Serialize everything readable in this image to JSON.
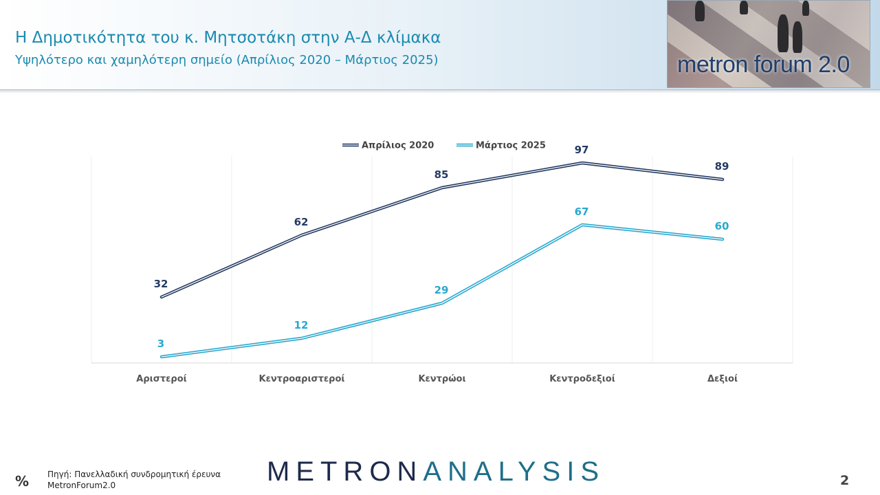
{
  "header": {
    "title": "Η Δημοτικότητα του κ. Μητσοτάκη στην Α-Δ κλίμακα",
    "subtitle": "Υψηλότερο και χαμηλότερη σημείο (Απρίλιος 2020 – Μάρτιος 2025)",
    "logo_text": "metron forum 2.0"
  },
  "colors": {
    "series_1": "#243b63",
    "series_2": "#2aa8cf",
    "title": "#1a8ab0"
  },
  "chart_data": {
    "type": "line",
    "categories": [
      "Αριστεροί",
      "Κεντροαριστεροί",
      "Κεντρώοι",
      "Κεντροδεξιοί",
      "Δεξιοί"
    ],
    "series": [
      {
        "name": "Απρίλιος 2020",
        "values": [
          32,
          62,
          85,
          97,
          89
        ]
      },
      {
        "name": "Μάρτιος 2025",
        "values": [
          3,
          12,
          29,
          67,
          60
        ]
      }
    ],
    "ylim": [
      0,
      100
    ],
    "legend": "top-center",
    "grid": "vertical"
  },
  "footer": {
    "unit_symbol": "%",
    "source_line1": "Πηγή: Πανελλαδική συνδρομητική έρευνα",
    "source_line2": "MetronForum2.0",
    "brand_part1": "METRON",
    "brand_part2": "ANALYSIS",
    "page_number": "2"
  }
}
